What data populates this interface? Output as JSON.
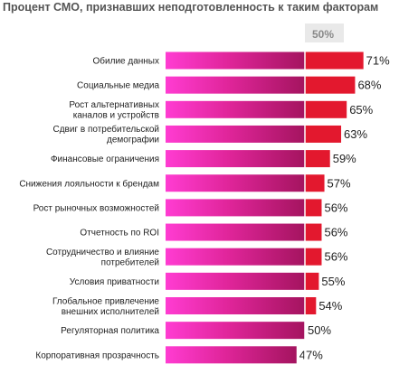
{
  "chart_data": {
    "type": "bar",
    "orientation": "horizontal",
    "title": "Процент СМО, признавших неподготовленность к таким факторам",
    "reference_line": {
      "value": 50,
      "label": "50%"
    },
    "value_suffix": "%",
    "categories": [
      "Обилие данных",
      "Социальные медиа",
      "Рост альтернативных каналов и устройств",
      "Сдвиг в потребительской демографии",
      "Финансовые ограничения",
      "Снижения лояльности к брендам",
      "Рост рыночных возможностей",
      "Отчетность по ROI",
      "Сотрудничество и влияние потребителей",
      "Условия приватности",
      "Глобальное привлечение внешних исполнителей",
      "Регуляторная политика",
      "Корпоративная прозрачность"
    ],
    "category_lines": [
      [
        "Обилие данных"
      ],
      [
        "Социальные медиа"
      ],
      [
        "Рост альтернативных",
        "каналов и устройств"
      ],
      [
        "Сдвиг в потребительской",
        "демографии"
      ],
      [
        "Финансовые ограничения"
      ],
      [
        "Снижения лояльности к брендам"
      ],
      [
        "Рост рыночных возможностей"
      ],
      [
        "Отчетность по ROI"
      ],
      [
        "Сотрудничество и влияние",
        "потребителей"
      ],
      [
        "Условия приватности"
      ],
      [
        "Глобальное привлечение",
        "внешних исполнителей"
      ],
      [
        "Регуляторная политика"
      ],
      [
        "Корпоративная прозрачность"
      ]
    ],
    "values": [
      71,
      68,
      65,
      63,
      59,
      57,
      56,
      56,
      56,
      55,
      54,
      50,
      47
    ],
    "colors": {
      "bar_gradient_start": "#ff3cd2",
      "bar_gradient_mid": "#e0259a",
      "bar_gradient_end": "#a4145f",
      "excess": "#e3182e",
      "reference_line": "#ffffff",
      "reference_header_bg": "#e9e9e9"
    }
  }
}
